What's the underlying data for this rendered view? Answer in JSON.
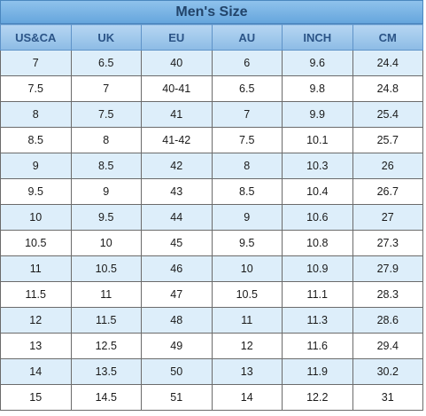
{
  "title": "Men's Size",
  "columns": [
    "US&CA",
    "UK",
    "EU",
    "AU",
    "INCH",
    "CM"
  ],
  "rows": [
    [
      "7",
      "6.5",
      "40",
      "6",
      "9.6",
      "24.4"
    ],
    [
      "7.5",
      "7",
      "40-41",
      "6.5",
      "9.8",
      "24.8"
    ],
    [
      "8",
      "7.5",
      "41",
      "7",
      "9.9",
      "25.4"
    ],
    [
      "8.5",
      "8",
      "41-42",
      "7.5",
      "10.1",
      "25.7"
    ],
    [
      "9",
      "8.5",
      "42",
      "8",
      "10.3",
      "26"
    ],
    [
      "9.5",
      "9",
      "43",
      "8.5",
      "10.4",
      "26.7"
    ],
    [
      "10",
      "9.5",
      "44",
      "9",
      "10.6",
      "27"
    ],
    [
      "10.5",
      "10",
      "45",
      "9.5",
      "10.8",
      "27.3"
    ],
    [
      "11",
      "10.5",
      "46",
      "10",
      "10.9",
      "27.9"
    ],
    [
      "11.5",
      "11",
      "47",
      "10.5",
      "11.1",
      "28.3"
    ],
    [
      "12",
      "11.5",
      "48",
      "11",
      "11.3",
      "28.6"
    ],
    [
      "13",
      "12.5",
      "49",
      "12",
      "11.6",
      "29.4"
    ],
    [
      "14",
      "13.5",
      "50",
      "13",
      "11.9",
      "30.2"
    ],
    [
      "15",
      "14.5",
      "51",
      "14",
      "12.2",
      "31"
    ]
  ],
  "colors": {
    "title_bg": "#7db5e6",
    "header_bg": "#a7cbee",
    "header_text": "#2b5487",
    "odd_row_bg": "#ddeefa",
    "even_row_bg": "#ffffff"
  }
}
